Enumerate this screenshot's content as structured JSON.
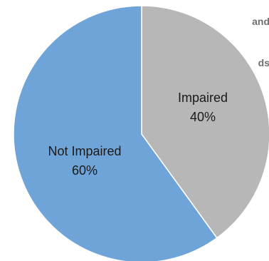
{
  "cut_text": {
    "line1": "and",
    "line2": "ds"
  },
  "chart_data": {
    "type": "pie",
    "title": "",
    "categories": [
      "Impaired",
      "Not Impaired"
    ],
    "values": [
      40,
      60
    ],
    "value_labels": [
      "40%",
      "60%"
    ],
    "colors": [
      "#b7b7b7",
      "#6fa4d9"
    ],
    "start_angle_deg": 0,
    "direction": "clockwise",
    "legend": "none"
  }
}
